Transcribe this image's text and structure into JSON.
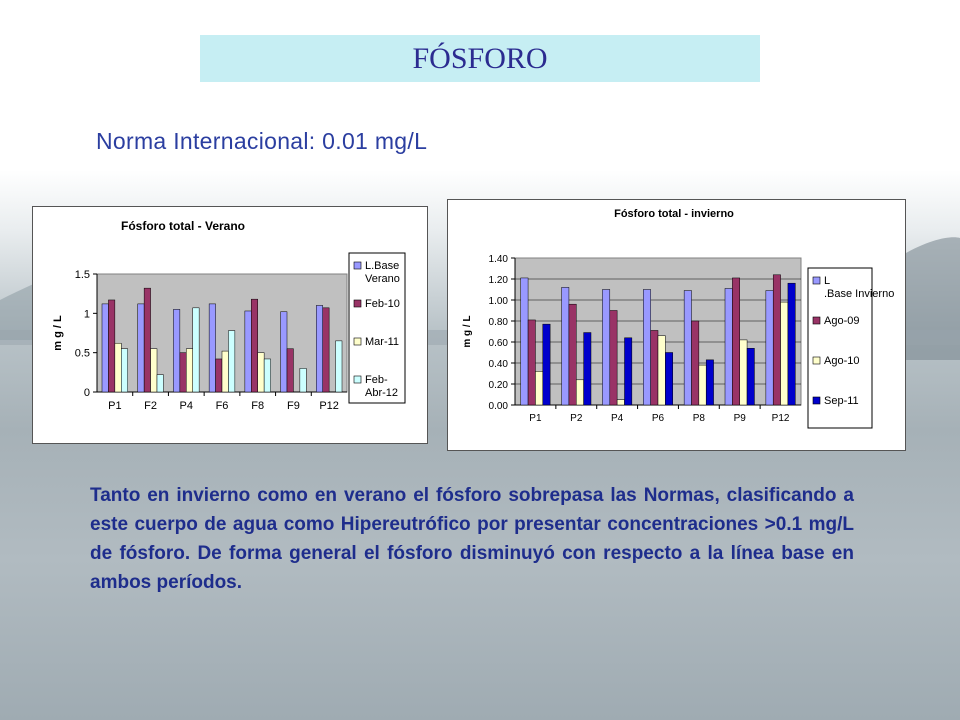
{
  "slide": {
    "title": "FÓSFORO",
    "subtitle": "Norma Internacional: 0.01 mg/L",
    "paragraph": "Tanto en invierno como en verano el fósforo sobrepasa las Normas, clasificando a este cuerpo de agua como Hipereutrófico por presentar concentraciones  >0.1 mg/L de fósforo. De forma general el fósforo disminuyó con respecto a la línea base en ambos períodos."
  },
  "colors": {
    "title_bg": "#c6eef3",
    "text_blue": "#1e2d8c",
    "plot_bg": "#c0c0c0",
    "lbase": "#9999ff",
    "feb10": "#993366",
    "mar11": "#ffffcc",
    "febabr12": "#ccffff",
    "ago09": "#993366",
    "ago10": "#ffffcc",
    "sep11": "#0000cc"
  },
  "chart_data": [
    {
      "type": "bar",
      "title": "Fósforo total  - Verano",
      "ylabel": "m g / L",
      "ylim": [
        0,
        1.5
      ],
      "yticks": [
        "0",
        "0.5",
        "1",
        "1.5"
      ],
      "legend_position": "right",
      "categories": [
        "P1",
        "F2",
        "P4",
        "F6",
        "F8",
        "F9",
        "P12"
      ],
      "series": [
        {
          "name": "L.Base Verano",
          "color": "#9999ff",
          "values": [
            1.12,
            1.12,
            1.05,
            1.12,
            1.03,
            1.02,
            1.1
          ]
        },
        {
          "name": "Feb-10",
          "color": "#993366",
          "values": [
            1.17,
            1.32,
            0.5,
            0.42,
            1.18,
            0.55,
            1.07
          ]
        },
        {
          "name": "Mar-11",
          "color": "#ffffcc",
          "values": [
            0.62,
            0.55,
            0.55,
            0.52,
            0.5,
            0,
            0
          ]
        },
        {
          "name": "Feb- Abr-12",
          "color": "#ccffff",
          "values": [
            0.55,
            0.22,
            1.07,
            0.78,
            0.42,
            0.3,
            0.65
          ]
        }
      ]
    },
    {
      "type": "bar",
      "title": "Fósforo total - invierno",
      "ylabel": "m g / L",
      "ylim": [
        0,
        1.4
      ],
      "yticks": [
        "0.00",
        "0.20",
        "0.40",
        "0.60",
        "0.80",
        "1.00",
        "1.20",
        "1.40"
      ],
      "legend_position": "right",
      "categories": [
        "P1",
        "P2",
        "P4",
        "P6",
        "P8",
        "P9",
        "P12"
      ],
      "series": [
        {
          "name": "L .Base Invierno",
          "color": "#9999ff",
          "values": [
            1.21,
            1.12,
            1.1,
            1.1,
            1.09,
            1.11,
            1.09
          ]
        },
        {
          "name": "Ago-09",
          "color": "#993366",
          "values": [
            0.81,
            0.96,
            0.9,
            0.71,
            0.8,
            1.21,
            1.24
          ]
        },
        {
          "name": "Ago-10",
          "color": "#ffffcc",
          "values": [
            0.32,
            0.24,
            0.05,
            0.66,
            0.38,
            0.62,
            0.98
          ]
        },
        {
          "name": "Sep-11",
          "color": "#0000cc",
          "values": [
            0.77,
            0.69,
            0.64,
            0.5,
            0.43,
            0.54,
            1.16
          ]
        }
      ]
    }
  ]
}
